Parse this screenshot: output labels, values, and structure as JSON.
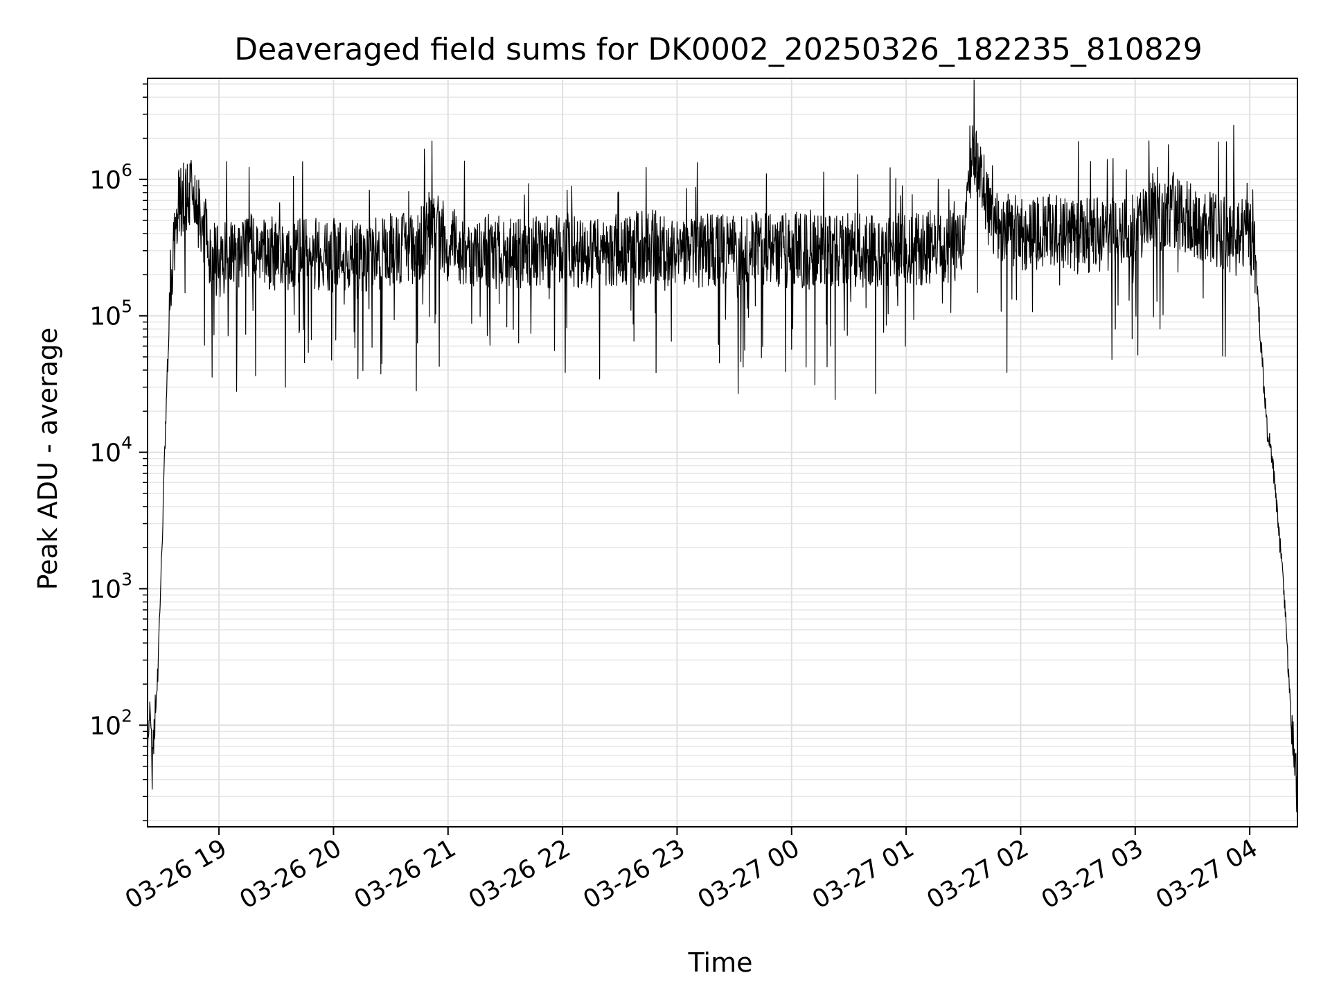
{
  "chart_data": {
    "type": "line",
    "title": "Deaveraged field sums for DK0002_20250326_182235_810829",
    "xlabel": "Time",
    "ylabel": "Peak ADU - average",
    "x_range": [
      "2025-03-26 18:22:35",
      "2025-03-27 04:25:00"
    ],
    "y_scale": "log",
    "ylim": [
      18,
      5500000
    ],
    "grid": true,
    "grid_minor": true,
    "line_color": "#000000",
    "x_ticks": [
      {
        "t": "2025-03-26 19:00",
        "label": "03-26 19"
      },
      {
        "t": "2025-03-26 20:00",
        "label": "03-26 20"
      },
      {
        "t": "2025-03-26 21:00",
        "label": "03-26 21"
      },
      {
        "t": "2025-03-26 22:00",
        "label": "03-26 22"
      },
      {
        "t": "2025-03-26 23:00",
        "label": "03-26 23"
      },
      {
        "t": "2025-03-27 00:00",
        "label": "03-27 00"
      },
      {
        "t": "2025-03-27 01:00",
        "label": "03-27 01"
      },
      {
        "t": "2025-03-27 02:00",
        "label": "03-27 02"
      },
      {
        "t": "2025-03-27 03:00",
        "label": "03-27 03"
      },
      {
        "t": "2025-03-27 04:00",
        "label": "03-27 04"
      }
    ],
    "y_ticks": [
      {
        "value": 100,
        "base": "10",
        "exp": "2"
      },
      {
        "value": 1000,
        "base": "10",
        "exp": "3"
      },
      {
        "value": 10000,
        "base": "10",
        "exp": "4"
      },
      {
        "value": 100000,
        "base": "10",
        "exp": "5"
      },
      {
        "value": 1000000,
        "base": "10",
        "exp": "6"
      }
    ],
    "series": [
      {
        "x": [
          "2025-03-26 18:22:35",
          "2025-03-26 18:24",
          "2025-03-26 18:25",
          "2025-03-26 18:26",
          "2025-03-26 18:27",
          "2025-03-26 18:28",
          "2025-03-26 18:29",
          "2025-03-26 18:30",
          "2025-03-26 18:31",
          "2025-03-26 18:32",
          "2025-03-26 18:33",
          "2025-03-26 18:34",
          "2025-03-26 18:35",
          "2025-03-26 18:36",
          "2025-03-26 18:37",
          "2025-03-26 18:38",
          "2025-03-26 18:39",
          "2025-03-26 18:40",
          "2025-03-26 18:42",
          "2025-03-26 18:44",
          "2025-03-26 18:46",
          "2025-03-26 18:48",
          "2025-03-26 18:50",
          "2025-03-26 18:52",
          "2025-03-26 18:54",
          "2025-03-26 18:56",
          "2025-03-26 18:58",
          "2025-03-26 19:00",
          "2025-03-26 19:10",
          "2025-03-26 19:20",
          "2025-03-26 19:30",
          "2025-03-26 19:40",
          "2025-03-26 19:50",
          "2025-03-26 20:00",
          "2025-03-26 20:15",
          "2025-03-26 20:30",
          "2025-03-26 20:45",
          "2025-03-26 20:52",
          "2025-03-26 21:00",
          "2025-03-26 21:15",
          "2025-03-26 21:30",
          "2025-03-26 21:45",
          "2025-03-26 22:00",
          "2025-03-26 22:15",
          "2025-03-26 22:30",
          "2025-03-26 22:45",
          "2025-03-26 23:00",
          "2025-03-26 23:15",
          "2025-03-26 23:30",
          "2025-03-26 23:45",
          "2025-03-27 00:00",
          "2025-03-27 00:15",
          "2025-03-27 00:30",
          "2025-03-27 00:45",
          "2025-03-27 01:00",
          "2025-03-27 01:15",
          "2025-03-27 01:30",
          "2025-03-27 01:33",
          "2025-03-27 01:37",
          "2025-03-27 01:40",
          "2025-03-27 01:45",
          "2025-03-27 02:00",
          "2025-03-27 02:15",
          "2025-03-27 02:30",
          "2025-03-27 02:45",
          "2025-03-27 03:00",
          "2025-03-27 03:10",
          "2025-03-27 03:20",
          "2025-03-27 03:30",
          "2025-03-27 03:45",
          "2025-03-27 04:00",
          "2025-03-27 04:03",
          "2025-03-27 04:06",
          "2025-03-27 04:09",
          "2025-03-27 04:12",
          "2025-03-27 04:15",
          "2025-03-27 04:18",
          "2025-03-27 04:20",
          "2025-03-27 04:22",
          "2025-03-27 04:24",
          "2025-03-27 04:25"
        ],
        "y": [
          60,
          150,
          50,
          90,
          120,
          280,
          600,
          1800,
          5000,
          15000,
          40000,
          90000,
          180000,
          300000,
          420000,
          540000,
          640000,
          710000,
          780000,
          780000,
          720000,
          600000,
          500000,
          420000,
          330000,
          280000,
          260000,
          250000,
          270000,
          300000,
          290000,
          280000,
          290000,
          280000,
          270000,
          300000,
          320000,
          500000,
          330000,
          300000,
          290000,
          290000,
          300000,
          290000,
          300000,
          320000,
          310000,
          300000,
          290000,
          310000,
          300000,
          290000,
          310000,
          300000,
          310000,
          320000,
          330000,
          1300000,
          1500000,
          900000,
          450000,
          400000,
          420000,
          380000,
          400000,
          450000,
          550000,
          600000,
          500000,
          400000,
          380000,
          250000,
          60000,
          15000,
          8000,
          3000,
          900,
          300,
          80,
          45,
          32
        ]
      }
    ]
  }
}
